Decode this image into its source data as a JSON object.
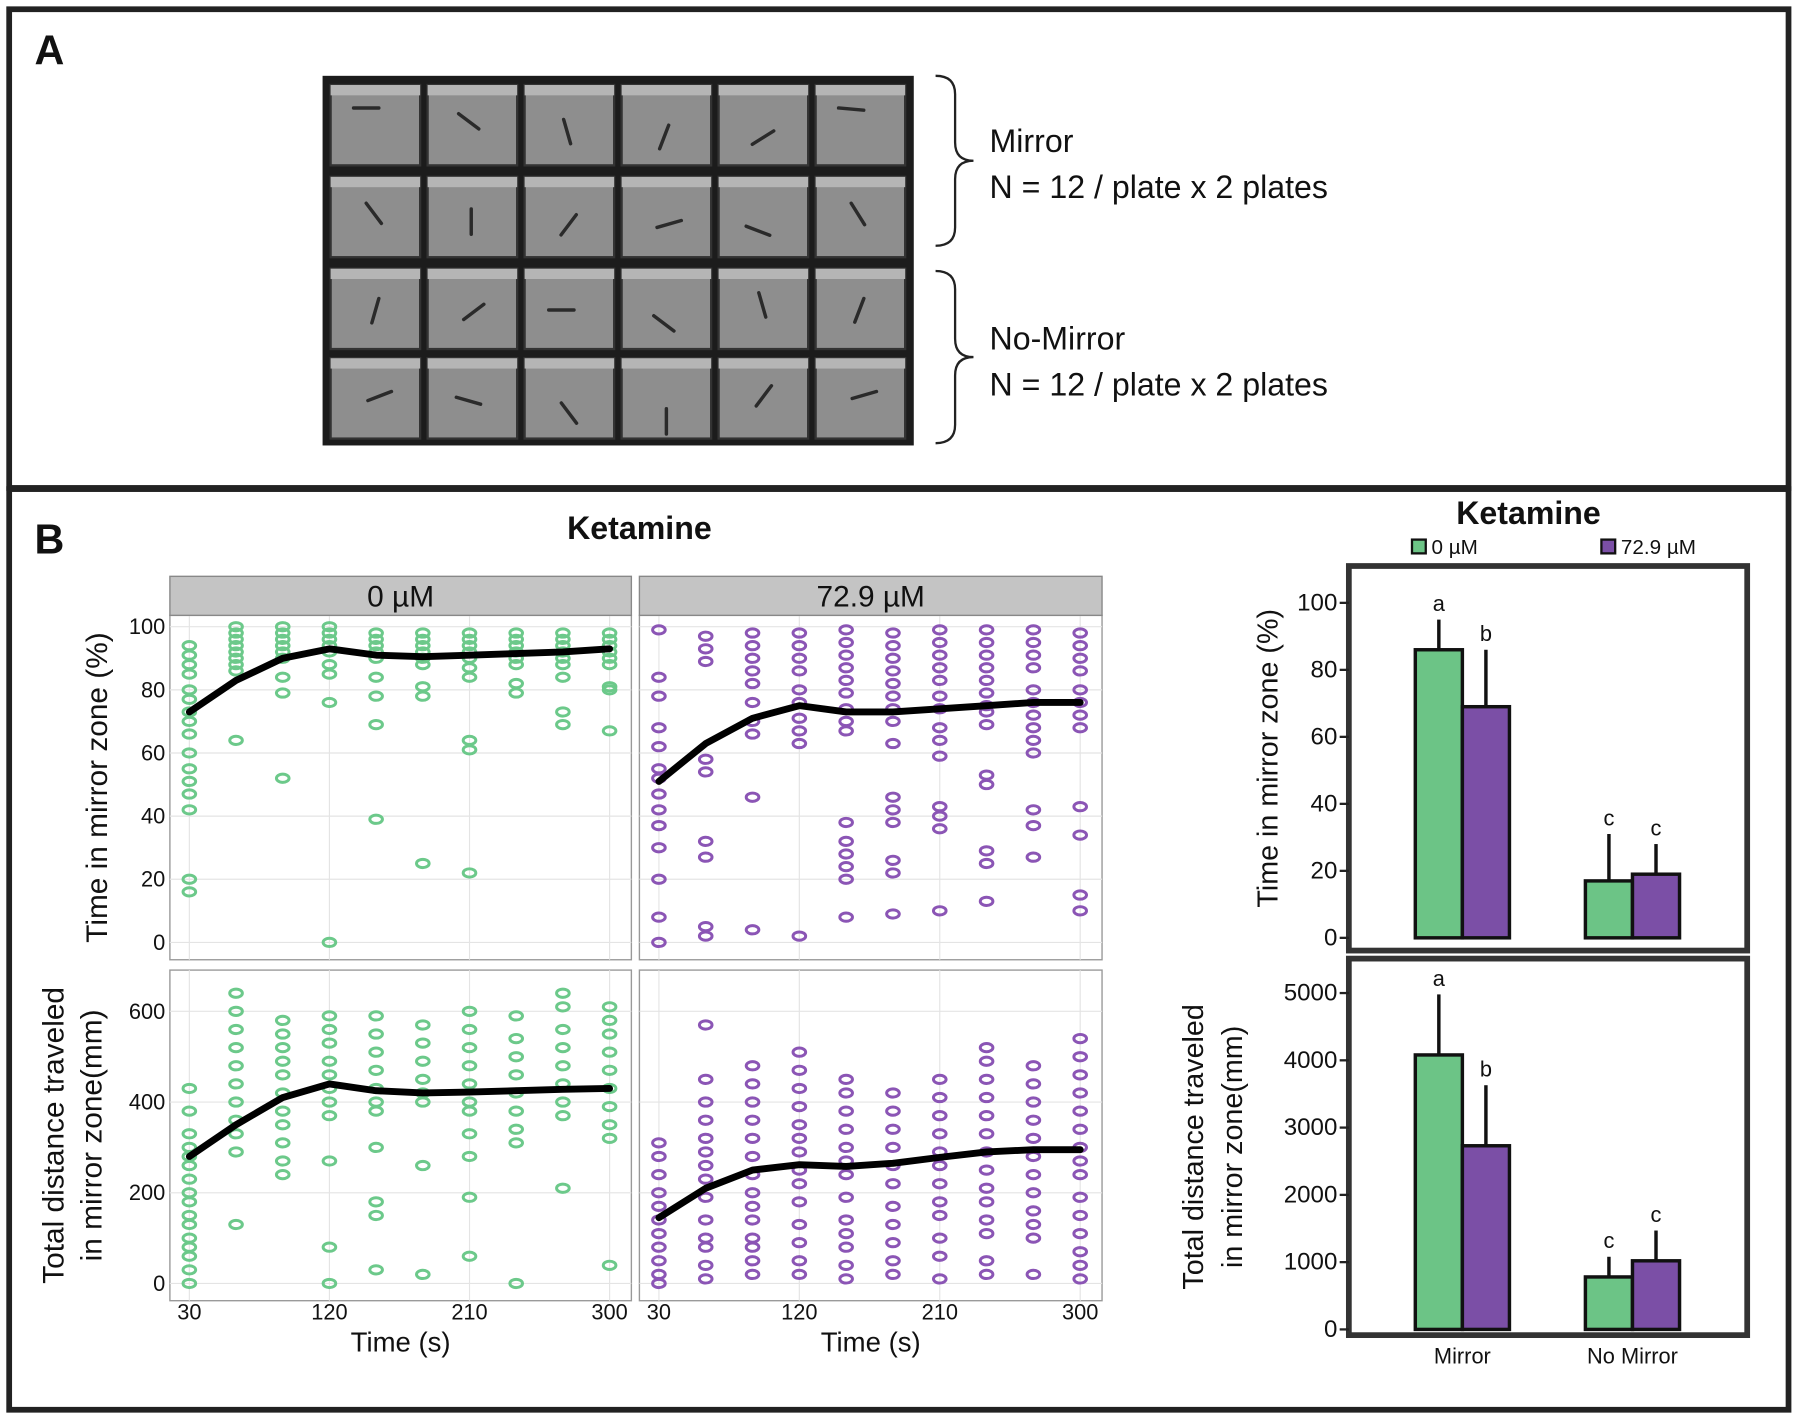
{
  "panel_a": {
    "label": "A",
    "groups": [
      {
        "name": "Mirror",
        "n": "N = 12 / plate x 2 plates"
      },
      {
        "name": "No-Mirror",
        "n": "N = 12 / plate x 2 plates"
      }
    ]
  },
  "panel_b": {
    "label": "B",
    "title": "Ketamine"
  },
  "chart_data": [
    {
      "type": "scatter",
      "title": "0 µM",
      "y_label": "Time in mirror zone (%)",
      "color": "#6cc98a",
      "xlim": [
        17.5,
        314
      ],
      "xticks": [
        30,
        120,
        210,
        300
      ],
      "ylim": [
        -5.5,
        103.6
      ],
      "yticks": [
        0,
        20,
        40,
        60,
        80,
        100
      ],
      "grid": true,
      "x": [
        30,
        60,
        90,
        120,
        150,
        180,
        210,
        240,
        270,
        300
      ],
      "points": [
        [
          94,
          91,
          88,
          85,
          80,
          77,
          73,
          70,
          66,
          60,
          55,
          51,
          47,
          42,
          20,
          16
        ],
        [
          100,
          98,
          96,
          94,
          92,
          90,
          88,
          86,
          64
        ],
        [
          100,
          98,
          96,
          94,
          92,
          90,
          84,
          79,
          52
        ],
        [
          100,
          98,
          96,
          94,
          92,
          88,
          85,
          76,
          0
        ],
        [
          98,
          96,
          94,
          92,
          90,
          84,
          78,
          69,
          39
        ],
        [
          98,
          96,
          94,
          92,
          90,
          88,
          81,
          78,
          25
        ],
        [
          98,
          96,
          94,
          92,
          90,
          87,
          84,
          64,
          61,
          22
        ],
        [
          98,
          96,
          94,
          92,
          90,
          88,
          82,
          79
        ],
        [
          98,
          96,
          94,
          92,
          90,
          88,
          84,
          73,
          69
        ],
        [
          98,
          96,
          94,
          92,
          90,
          88,
          81,
          80,
          67
        ]
      ],
      "trend": [
        73,
        83,
        90,
        93,
        91,
        90.5,
        91,
        91.5,
        92,
        93
      ]
    },
    {
      "type": "scatter",
      "title": "72.9 µM",
      "color": "#8b55b5",
      "xlim": [
        17.5,
        314
      ],
      "xticks": [
        30,
        120,
        210,
        300
      ],
      "ylim": [
        -5.5,
        103.6
      ],
      "yticks": [
        0,
        20,
        40,
        60,
        80,
        100
      ],
      "grid": true,
      "x": [
        30,
        60,
        90,
        120,
        150,
        180,
        210,
        240,
        270,
        300
      ],
      "points": [
        [
          99,
          84,
          78,
          68,
          62,
          55,
          52,
          47,
          42,
          37,
          30,
          20,
          8,
          0
        ],
        [
          97,
          93,
          89,
          58,
          54,
          32,
          27,
          5,
          2
        ],
        [
          98,
          94,
          90,
          86,
          82,
          76,
          70,
          66,
          46,
          4
        ],
        [
          98,
          94,
          90,
          86,
          80,
          76,
          71,
          67,
          63,
          2
        ],
        [
          99,
          95,
          91,
          87,
          83,
          79,
          74,
          70,
          67,
          38,
          32,
          28,
          24,
          20,
          8
        ],
        [
          98,
          94,
          90,
          86,
          82,
          78,
          74,
          70,
          63,
          46,
          42,
          38,
          26,
          22,
          9
        ],
        [
          99,
          95,
          91,
          87,
          83,
          78,
          74,
          68,
          64,
          59,
          43,
          40,
          36,
          10
        ],
        [
          99,
          95,
          91,
          87,
          83,
          79,
          75,
          73,
          69,
          53,
          50,
          29,
          25,
          13
        ],
        [
          99,
          95,
          91,
          87,
          80,
          76,
          72,
          68,
          64,
          60,
          42,
          37,
          27
        ],
        [
          98,
          94,
          90,
          86,
          80,
          76,
          72,
          68,
          43,
          34,
          15,
          10
        ]
      ],
      "trend": [
        51,
        63,
        71,
        75,
        73,
        73,
        74,
        75,
        76,
        76
      ]
    },
    {
      "type": "scatter",
      "x_label": "Time (s)",
      "y_label": [
        "Total distance traveled",
        "in mirror zone(mm)"
      ],
      "color": "#6cc98a",
      "xlim": [
        17.5,
        314
      ],
      "xticks": [
        30,
        120,
        210,
        300
      ],
      "ylim": [
        -38,
        691
      ],
      "yticks": [
        0,
        200,
        400,
        600
      ],
      "grid": true,
      "x": [
        30,
        60,
        90,
        120,
        150,
        180,
        210,
        240,
        270,
        300
      ],
      "points": [
        [
          430,
          380,
          330,
          300,
          280,
          260,
          230,
          200,
          180,
          150,
          130,
          100,
          80,
          60,
          30,
          0
        ],
        [
          640,
          600,
          560,
          520,
          480,
          440,
          400,
          360,
          330,
          290,
          130
        ],
        [
          580,
          550,
          520,
          490,
          460,
          420,
          380,
          350,
          310,
          270,
          240
        ],
        [
          590,
          560,
          530,
          490,
          460,
          430,
          400,
          370,
          270,
          80,
          0
        ],
        [
          590,
          550,
          510,
          470,
          430,
          400,
          380,
          300,
          180,
          150,
          30
        ],
        [
          570,
          530,
          490,
          450,
          420,
          400,
          260,
          20
        ],
        [
          600,
          560,
          520,
          480,
          440,
          400,
          380,
          330,
          280,
          190,
          60
        ],
        [
          590,
          540,
          500,
          460,
          420,
          380,
          340,
          310,
          0
        ],
        [
          640,
          610,
          560,
          520,
          480,
          440,
          400,
          370,
          210
        ],
        [
          610,
          580,
          550,
          510,
          470,
          430,
          390,
          350,
          320,
          40
        ]
      ],
      "trend": [
        280,
        350,
        410,
        440,
        425,
        420,
        422,
        425,
        428,
        430
      ]
    },
    {
      "type": "scatter",
      "x_label": "Time (s)",
      "color": "#8b55b5",
      "xlim": [
        17.5,
        314
      ],
      "xticks": [
        30,
        120,
        210,
        300
      ],
      "ylim": [
        -38,
        691
      ],
      "yticks": [
        0,
        200,
        400,
        600
      ],
      "grid": true,
      "x": [
        30,
        60,
        90,
        120,
        150,
        180,
        210,
        240,
        270,
        300
      ],
      "points": [
        [
          310,
          280,
          240,
          200,
          170,
          140,
          110,
          80,
          50,
          20,
          0
        ],
        [
          570,
          450,
          400,
          360,
          320,
          290,
          260,
          230,
          190,
          140,
          100,
          80,
          40,
          10
        ],
        [
          480,
          440,
          400,
          360,
          320,
          280,
          240,
          200,
          170,
          140,
          100,
          80,
          50,
          20
        ],
        [
          510,
          470,
          430,
          390,
          350,
          320,
          290,
          250,
          220,
          180,
          130,
          90,
          50,
          20
        ],
        [
          450,
          420,
          380,
          340,
          300,
          270,
          240,
          190,
          140,
          110,
          80,
          40,
          10
        ],
        [
          420,
          380,
          340,
          300,
          260,
          220,
          170,
          130,
          90,
          50,
          20
        ],
        [
          450,
          410,
          370,
          330,
          290,
          260,
          220,
          180,
          150,
          100,
          60,
          10
        ],
        [
          520,
          490,
          450,
          410,
          370,
          330,
          290,
          250,
          210,
          180,
          140,
          110,
          50,
          20
        ],
        [
          480,
          440,
          400,
          360,
          320,
          280,
          240,
          200,
          160,
          130,
          100,
          20
        ],
        [
          540,
          500,
          460,
          420,
          380,
          340,
          300,
          270,
          240,
          190,
          150,
          110,
          70,
          40,
          10
        ]
      ],
      "trend": [
        145,
        210,
        250,
        262,
        258,
        265,
        278,
        290,
        295,
        295
      ]
    },
    {
      "type": "bar",
      "title": "Ketamine",
      "legend": true,
      "y_label": "Time in mirror zone (%)",
      "ylim": [
        -3.8,
        111
      ],
      "yticks": [
        0,
        20,
        40,
        60,
        80,
        100
      ],
      "series": [
        {
          "name": "0 µM",
          "color": "#6cc486",
          "values": [
            86,
            17
          ],
          "errors": [
            9,
            14
          ],
          "letters": [
            "a",
            "c"
          ]
        },
        {
          "name": "72.9 µM",
          "color": "#7b4fa6",
          "values": [
            69,
            19
          ],
          "errors": [
            17,
            9
          ],
          "letters": [
            "b",
            "c"
          ]
        }
      ]
    },
    {
      "type": "bar",
      "y_label": [
        "Total distance traveled",
        "in mirror zone(mm)"
      ],
      "categories": [
        "Mirror",
        "No Mirror"
      ],
      "ylim": [
        -85,
        5512
      ],
      "yticks": [
        0,
        1000,
        2000,
        3000,
        4000,
        5000
      ],
      "series": [
        {
          "color": "#6cc486",
          "values": [
            4080,
            780
          ],
          "errors": [
            900,
            300
          ],
          "letters": [
            "a",
            "c"
          ]
        },
        {
          "color": "#7b4fa6",
          "values": [
            2730,
            1020
          ],
          "errors": [
            900,
            450
          ],
          "letters": [
            "b",
            "c"
          ]
        }
      ]
    }
  ]
}
